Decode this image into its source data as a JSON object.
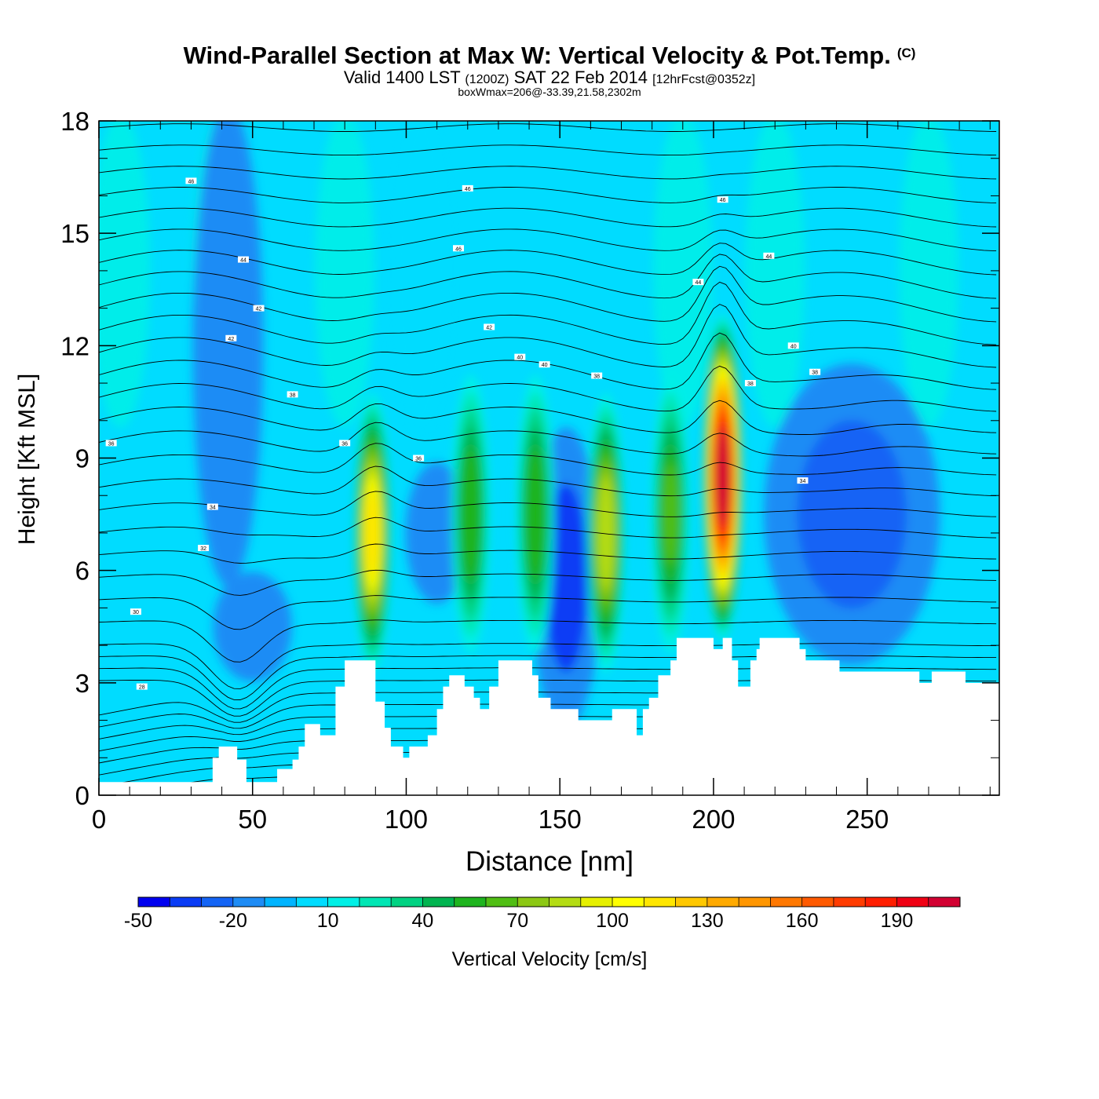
{
  "header": {
    "title": "Wind-Parallel Section at Max W: Vertical Velocity & Pot.Temp.",
    "copyright": "(C)",
    "valid_prefix": "Valid 1400 LST",
    "valid_utc": "(1200Z)",
    "valid_date": "SAT 22 Feb 2014",
    "valid_fcst": "[12hrFcst@0352z]",
    "box_info": "boxWmax=206@-33.39,21.58,2302m"
  },
  "chart_data": {
    "type": "heatmap",
    "title": "Wind-Parallel Section at Max W: Vertical Velocity & Pot.Temp.",
    "xlabel": "Distance [nm]",
    "ylabel": "Height [Kft MSL]",
    "xlim": [
      0,
      293
    ],
    "ylim": [
      0,
      18
    ],
    "xticks": [
      "0",
      "50",
      "100",
      "150",
      "200",
      "250"
    ],
    "xtick_values": [
      0,
      50,
      100,
      150,
      200,
      250
    ],
    "yticks": [
      "0",
      "3",
      "6",
      "9",
      "12",
      "15",
      "18"
    ],
    "ytick_values": [
      0,
      3,
      6,
      9,
      12,
      15,
      18
    ],
    "colorbar": {
      "label": "Vertical Velocity [cm/s]",
      "levels": [
        -50,
        -40,
        -30,
        -20,
        -10,
        0,
        10,
        20,
        30,
        40,
        50,
        60,
        70,
        80,
        90,
        100,
        110,
        120,
        130,
        140,
        150,
        160,
        170,
        180,
        190,
        200,
        210
      ],
      "tick_labels": [
        "-50",
        "-20",
        "10",
        "40",
        "70",
        "100",
        "130",
        "160",
        "190"
      ],
      "tick_values": [
        -50,
        -20,
        10,
        40,
        70,
        100,
        130,
        160,
        190
      ],
      "colors": [
        "#0000f0",
        "#0a3cf5",
        "#1464f5",
        "#1e8cf5",
        "#00b4ff",
        "#00dcff",
        "#00f0e6",
        "#00e6b4",
        "#00d282",
        "#00b450",
        "#1eb41e",
        "#50be14",
        "#8cc814",
        "#b4dc14",
        "#e6f000",
        "#ffff00",
        "#ffe600",
        "#ffc800",
        "#ffaa00",
        "#ff9600",
        "#ff7800",
        "#ff5a00",
        "#ff3c00",
        "#ff1e00",
        "#f00014",
        "#d20032"
      ]
    },
    "updraft_cores": [
      {
        "x": 89,
        "z": 7.0,
        "w": 110
      },
      {
        "x": 121,
        "z": 7.5,
        "w": 55
      },
      {
        "x": 142,
        "z": 7.5,
        "w": 55
      },
      {
        "x": 165,
        "z": 7.0,
        "w": 85
      },
      {
        "x": 186,
        "z": 7.5,
        "w": 60
      },
      {
        "x": 203,
        "z": 8.5,
        "w": 206
      }
    ],
    "downdraft_cores": [
      {
        "x": 152,
        "z": 5.8,
        "w": -40
      },
      {
        "x": 245,
        "z": 7.5,
        "w": -25
      },
      {
        "x": 42,
        "z": 12.0,
        "w": -20
      }
    ],
    "terrain_kft": [
      [
        0,
        0.35
      ],
      [
        35,
        0.35
      ],
      [
        37,
        1.0
      ],
      [
        39,
        1.3
      ],
      [
        43,
        1.3
      ],
      [
        45,
        0.95
      ],
      [
        48,
        0.35
      ],
      [
        56,
        0.35
      ],
      [
        58,
        0.7
      ],
      [
        62,
        0.7
      ],
      [
        63,
        0.95
      ],
      [
        65,
        1.3
      ],
      [
        67,
        1.9
      ],
      [
        71,
        1.9
      ],
      [
        72,
        1.6
      ],
      [
        75,
        1.6
      ],
      [
        77,
        2.9
      ],
      [
        80,
        3.6
      ],
      [
        88,
        3.6
      ],
      [
        90,
        2.5
      ],
      [
        93,
        1.8
      ],
      [
        95,
        1.3
      ],
      [
        99,
        1.0
      ],
      [
        101,
        1.3
      ],
      [
        104,
        1.3
      ],
      [
        107,
        1.6
      ],
      [
        110,
        2.3
      ],
      [
        112,
        2.9
      ],
      [
        114,
        3.2
      ],
      [
        117,
        3.2
      ],
      [
        119,
        2.9
      ],
      [
        122,
        2.6
      ],
      [
        124,
        2.3
      ],
      [
        127,
        2.9
      ],
      [
        130,
        3.6
      ],
      [
        138,
        3.6
      ],
      [
        141,
        3.2
      ],
      [
        143,
        2.6
      ],
      [
        147,
        2.3
      ],
      [
        154,
        2.3
      ],
      [
        156,
        2.0
      ],
      [
        165,
        2.0
      ],
      [
        167,
        2.3
      ],
      [
        173,
        2.3
      ],
      [
        175,
        1.6
      ],
      [
        177,
        2.3
      ],
      [
        179,
        2.6
      ],
      [
        182,
        3.2
      ],
      [
        186,
        3.6
      ],
      [
        188,
        4.2
      ],
      [
        198,
        4.2
      ],
      [
        200,
        3.9
      ],
      [
        203,
        4.2
      ],
      [
        206,
        3.6
      ],
      [
        208,
        2.9
      ],
      [
        212,
        3.6
      ],
      [
        214,
        3.9
      ],
      [
        215,
        4.2
      ],
      [
        224,
        4.2
      ],
      [
        228,
        3.9
      ],
      [
        230,
        3.6
      ],
      [
        241,
        3.3
      ],
      [
        265,
        3.3
      ],
      [
        267,
        3.0
      ],
      [
        270,
        3.0
      ],
      [
        271,
        3.3
      ],
      [
        281,
        3.3
      ],
      [
        282,
        3.0
      ],
      [
        293,
        3.0
      ]
    ],
    "theta_contour_labels": [
      "46",
      "46",
      "46",
      "46",
      "44",
      "44",
      "44",
      "42",
      "42",
      "42",
      "40",
      "40",
      "40",
      "38",
      "38",
      "38",
      "38",
      "36",
      "36",
      "36",
      "34",
      "34",
      "32",
      "30",
      "28"
    ]
  }
}
